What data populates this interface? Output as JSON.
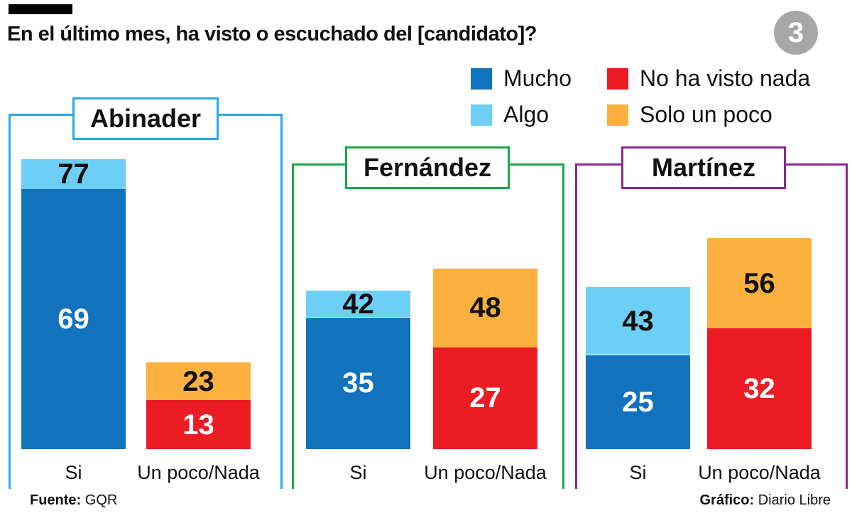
{
  "header": {
    "title": "En el último mes, ha visto o escuchado del [candidato]?",
    "badge": "3"
  },
  "legend": [
    {
      "label": "Mucho",
      "color": "#1272bd"
    },
    {
      "label": "No ha visto nada",
      "color": "#ec1c24"
    },
    {
      "label": "Algo",
      "color": "#6dcff6"
    },
    {
      "label": "Solo un poco",
      "color": "#fbb040"
    }
  ],
  "footer": {
    "source_label": "Fuente:",
    "source_value": "GQR",
    "credit_label": "Gráfico:",
    "credit_value": "Diario Libre"
  },
  "chart_data": {
    "type": "bar",
    "stacked": true,
    "ylim": [
      0,
      100
    ],
    "panels": [
      {
        "name": "Abinader",
        "color": "#29aae1",
        "categories": [
          "Si",
          "Un poco/Nada"
        ],
        "bars": [
          {
            "category": "Si",
            "segments": [
              {
                "series": "Mucho",
                "value": 69,
                "label": "69"
              },
              {
                "series": "Algo",
                "value": 8,
                "label": "77"
              }
            ]
          },
          {
            "category": "Un poco/Nada",
            "segments": [
              {
                "series": "No ha visto nada",
                "value": 13,
                "label": "13"
              },
              {
                "series": "Solo un poco",
                "value": 10,
                "label": "23"
              }
            ]
          }
        ]
      },
      {
        "name": "Fernández",
        "color": "#1aa84a",
        "categories": [
          "Si",
          "Un poco/Nada"
        ],
        "bars": [
          {
            "category": "Si",
            "segments": [
              {
                "series": "Mucho",
                "value": 35,
                "label": "35"
              },
              {
                "series": "Algo",
                "value": 7,
                "label": "42"
              }
            ]
          },
          {
            "category": "Un poco/Nada",
            "segments": [
              {
                "series": "No ha visto nada",
                "value": 27,
                "label": "27"
              },
              {
                "series": "Solo un poco",
                "value": 21,
                "label": "48"
              }
            ]
          }
        ]
      },
      {
        "name": "Martínez",
        "color": "#8e278f",
        "categories": [
          "Si",
          "Un poco/Nada"
        ],
        "bars": [
          {
            "category": "Si",
            "segments": [
              {
                "series": "Mucho",
                "value": 25,
                "label": "25"
              },
              {
                "series": "Algo",
                "value": 18,
                "label": "43"
              }
            ]
          },
          {
            "category": "Un poco/Nada",
            "segments": [
              {
                "series": "No ha visto nada",
                "value": 32,
                "label": "32"
              },
              {
                "series": "Solo un poco",
                "value": 24,
                "label": "56"
              }
            ]
          }
        ]
      }
    ]
  }
}
